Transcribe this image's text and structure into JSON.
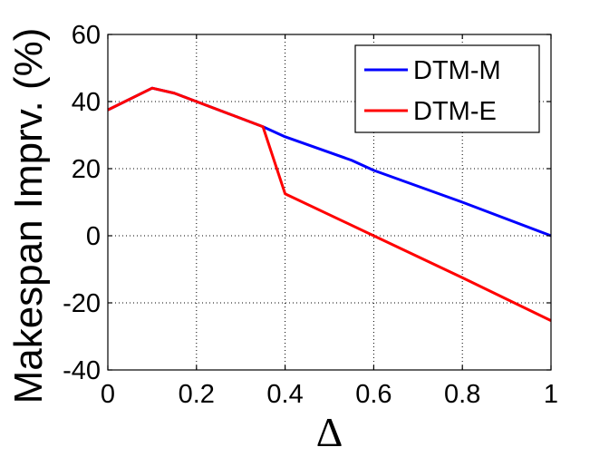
{
  "chart_data": {
    "type": "line",
    "title": "",
    "xlabel": "Δ",
    "ylabel": "Makespan Imprv. (%)",
    "xlim": [
      0,
      1
    ],
    "ylim": [
      -40,
      60
    ],
    "xticks": [
      0,
      0.2,
      0.4,
      0.6,
      0.8,
      1
    ],
    "yticks": [
      -40,
      -20,
      0,
      20,
      40,
      60
    ],
    "xtick_labels": [
      "0",
      "0.2",
      "0.4",
      "0.6",
      "0.8",
      "1"
    ],
    "ytick_labels": [
      "-40",
      "-20",
      "0",
      "20",
      "40",
      "60"
    ],
    "grid": true,
    "legend_position": "top-right",
    "series": [
      {
        "name": "DTM-M",
        "color": "#0000ff",
        "x": [
          0,
          0.1,
          0.15,
          0.35,
          0.4,
          0.55,
          0.6,
          0.8,
          1.0
        ],
        "y": [
          37.5,
          44,
          42.5,
          32.5,
          29.5,
          22.5,
          19.5,
          10,
          0
        ]
      },
      {
        "name": "DTM-E",
        "color": "#ff0000",
        "x": [
          0,
          0.1,
          0.15,
          0.35,
          0.4,
          0.6,
          0.8,
          1.0
        ],
        "y": [
          37.5,
          44,
          42.5,
          32.5,
          12.5,
          0,
          -12.5,
          -25.3
        ]
      }
    ]
  }
}
